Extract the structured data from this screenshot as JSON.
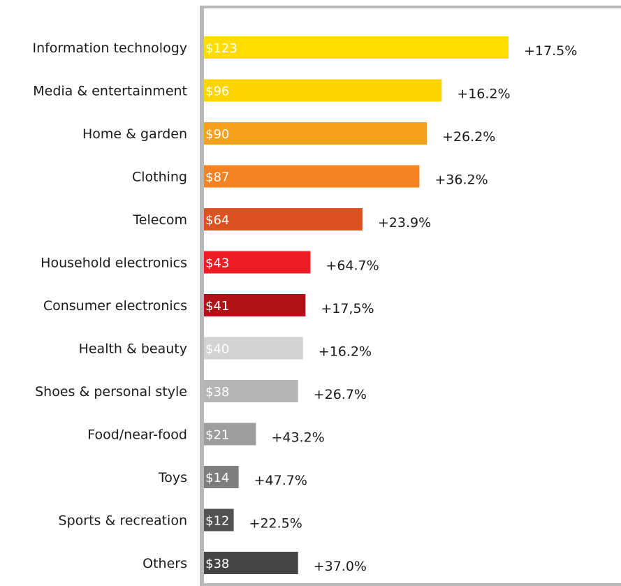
{
  "chart_data": {
    "type": "bar",
    "orientation": "horizontal",
    "categories": [
      "Information technology",
      "Media & entertainment",
      "Home & garden",
      "Clothing",
      "Telecom",
      "Household electronics",
      "Consumer electronics",
      "Health & beauty",
      "Shoes & personal style",
      "Food/near-food",
      "Toys",
      "Sports & recreation",
      "Others"
    ],
    "values": [
      123,
      96,
      90,
      87,
      64,
      43,
      41,
      40,
      38,
      21,
      14,
      12,
      38
    ],
    "value_labels": [
      "$123",
      "$96",
      "$90",
      "$87",
      "$64",
      "$43",
      "$41",
      "$40",
      "$38",
      "$21",
      "$14",
      "$12",
      "$38"
    ],
    "change_labels": [
      "+17.5%",
      "+16.2%",
      "+26.2%",
      "+36.2%",
      "+23.9%",
      "+64.7%",
      "+17,5%",
      "+16.2%",
      "+26.7%",
      "+43.2%",
      "+47.7%",
      "+22.5%",
      "+37.0%"
    ],
    "colors": [
      "#FFDD00",
      "#FFD500",
      "#F8A01C",
      "#F58220",
      "#DE5221",
      "#ED1C24",
      "#B01218",
      "#D1D2D4",
      "#B4B5B7",
      "#9D9D9F",
      "#7D7D7F",
      "#525254",
      "#444444"
    ],
    "title": "",
    "xlabel": "",
    "ylabel": "",
    "xlim": [
      0,
      140
    ],
    "grid": false,
    "legend": "none"
  }
}
